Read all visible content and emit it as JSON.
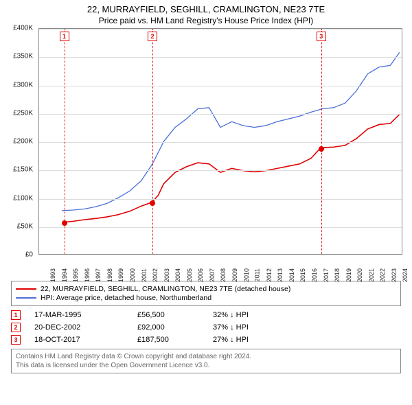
{
  "title": "22, MURRAYFIELD, SEGHILL, CRAMLINGTON, NE23 7TE",
  "subtitle": "Price paid vs. HM Land Registry's House Price Index (HPI)",
  "chart": {
    "type": "line",
    "background_color": "#ffffff",
    "grid_color": "#dddddd",
    "axis_color": "#888888",
    "y": {
      "min": 0,
      "max": 400000,
      "step": 50000,
      "labels": [
        "£0",
        "£50K",
        "£100K",
        "£150K",
        "£200K",
        "£250K",
        "£300K",
        "£350K",
        "£400K"
      ]
    },
    "x": {
      "min": 1993,
      "max": 2025,
      "ticks": [
        1993,
        1994,
        1995,
        1996,
        1997,
        1998,
        1999,
        2000,
        2001,
        2002,
        2003,
        2004,
        2005,
        2006,
        2007,
        2008,
        2009,
        2010,
        2011,
        2012,
        2013,
        2014,
        2015,
        2016,
        2017,
        2018,
        2019,
        2020,
        2021,
        2022,
        2023,
        2024,
        2025
      ]
    },
    "series": [
      {
        "name": "22, MURRAYFIELD, SEGHILL, CRAMLINGTON, NE23 7TE (detached house)",
        "color": "#e00000",
        "line_width": 1.6,
        "points": [
          [
            1995.21,
            56500
          ],
          [
            1996,
            58000
          ],
          [
            1997,
            61000
          ],
          [
            1998,
            63000
          ],
          [
            1999,
            66000
          ],
          [
            2000,
            70000
          ],
          [
            2001,
            76000
          ],
          [
            2002,
            85000
          ],
          [
            2002.97,
            92000
          ],
          [
            2003.5,
            104000
          ],
          [
            2004,
            125000
          ],
          [
            2005,
            145000
          ],
          [
            2006,
            155000
          ],
          [
            2007,
            162000
          ],
          [
            2008,
            160000
          ],
          [
            2009,
            145000
          ],
          [
            2010,
            152000
          ],
          [
            2011,
            148000
          ],
          [
            2012,
            146000
          ],
          [
            2013,
            148000
          ],
          [
            2014,
            152000
          ],
          [
            2015,
            156000
          ],
          [
            2016,
            160000
          ],
          [
            2017,
            170000
          ],
          [
            2017.8,
            187500
          ],
          [
            2018,
            189000
          ],
          [
            2019,
            190000
          ],
          [
            2020,
            193000
          ],
          [
            2021,
            205000
          ],
          [
            2022,
            222000
          ],
          [
            2023,
            230000
          ],
          [
            2024,
            232000
          ],
          [
            2024.8,
            248000
          ]
        ]
      },
      {
        "name": "HPI: Average price, detached house, Northumberland",
        "color": "#4a6fd8",
        "line_width": 1.3,
        "points": [
          [
            1995,
            77000
          ],
          [
            1996,
            78000
          ],
          [
            1997,
            80000
          ],
          [
            1998,
            84000
          ],
          [
            1999,
            90000
          ],
          [
            2000,
            100000
          ],
          [
            2001,
            112000
          ],
          [
            2002,
            130000
          ],
          [
            2003,
            160000
          ],
          [
            2004,
            200000
          ],
          [
            2005,
            225000
          ],
          [
            2006,
            240000
          ],
          [
            2007,
            258000
          ],
          [
            2008,
            260000
          ],
          [
            2009,
            225000
          ],
          [
            2010,
            235000
          ],
          [
            2011,
            228000
          ],
          [
            2012,
            225000
          ],
          [
            2013,
            228000
          ],
          [
            2014,
            235000
          ],
          [
            2015,
            240000
          ],
          [
            2016,
            245000
          ],
          [
            2017,
            252000
          ],
          [
            2018,
            258000
          ],
          [
            2019,
            260000
          ],
          [
            2020,
            268000
          ],
          [
            2021,
            290000
          ],
          [
            2022,
            320000
          ],
          [
            2023,
            332000
          ],
          [
            2024,
            335000
          ],
          [
            2024.8,
            358000
          ]
        ]
      }
    ],
    "sale_markers": [
      {
        "num": "1",
        "year": 1995.21,
        "price": 56500,
        "color": "#e00000"
      },
      {
        "num": "2",
        "year": 2002.97,
        "price": 92000,
        "color": "#e00000"
      },
      {
        "num": "3",
        "year": 2017.8,
        "price": 187500,
        "color": "#e00000"
      }
    ]
  },
  "legend": {
    "items": [
      {
        "color": "#e00000",
        "label": "22, MURRAYFIELD, SEGHILL, CRAMLINGTON, NE23 7TE (detached house)"
      },
      {
        "color": "#4a6fd8",
        "label": "HPI: Average price, detached house, Northumberland"
      }
    ]
  },
  "sales": [
    {
      "num": "1",
      "color": "#e00000",
      "date": "17-MAR-1995",
      "price": "£56,500",
      "diff": "32% ↓ HPI"
    },
    {
      "num": "2",
      "color": "#e00000",
      "date": "20-DEC-2002",
      "price": "£92,000",
      "diff": "37% ↓ HPI"
    },
    {
      "num": "3",
      "color": "#e00000",
      "date": "18-OCT-2017",
      "price": "£187,500",
      "diff": "27% ↓ HPI"
    }
  ],
  "footer": {
    "line1": "Contains HM Land Registry data © Crown copyright and database right 2024.",
    "line2": "This data is licensed under the Open Government Licence v3.0."
  }
}
